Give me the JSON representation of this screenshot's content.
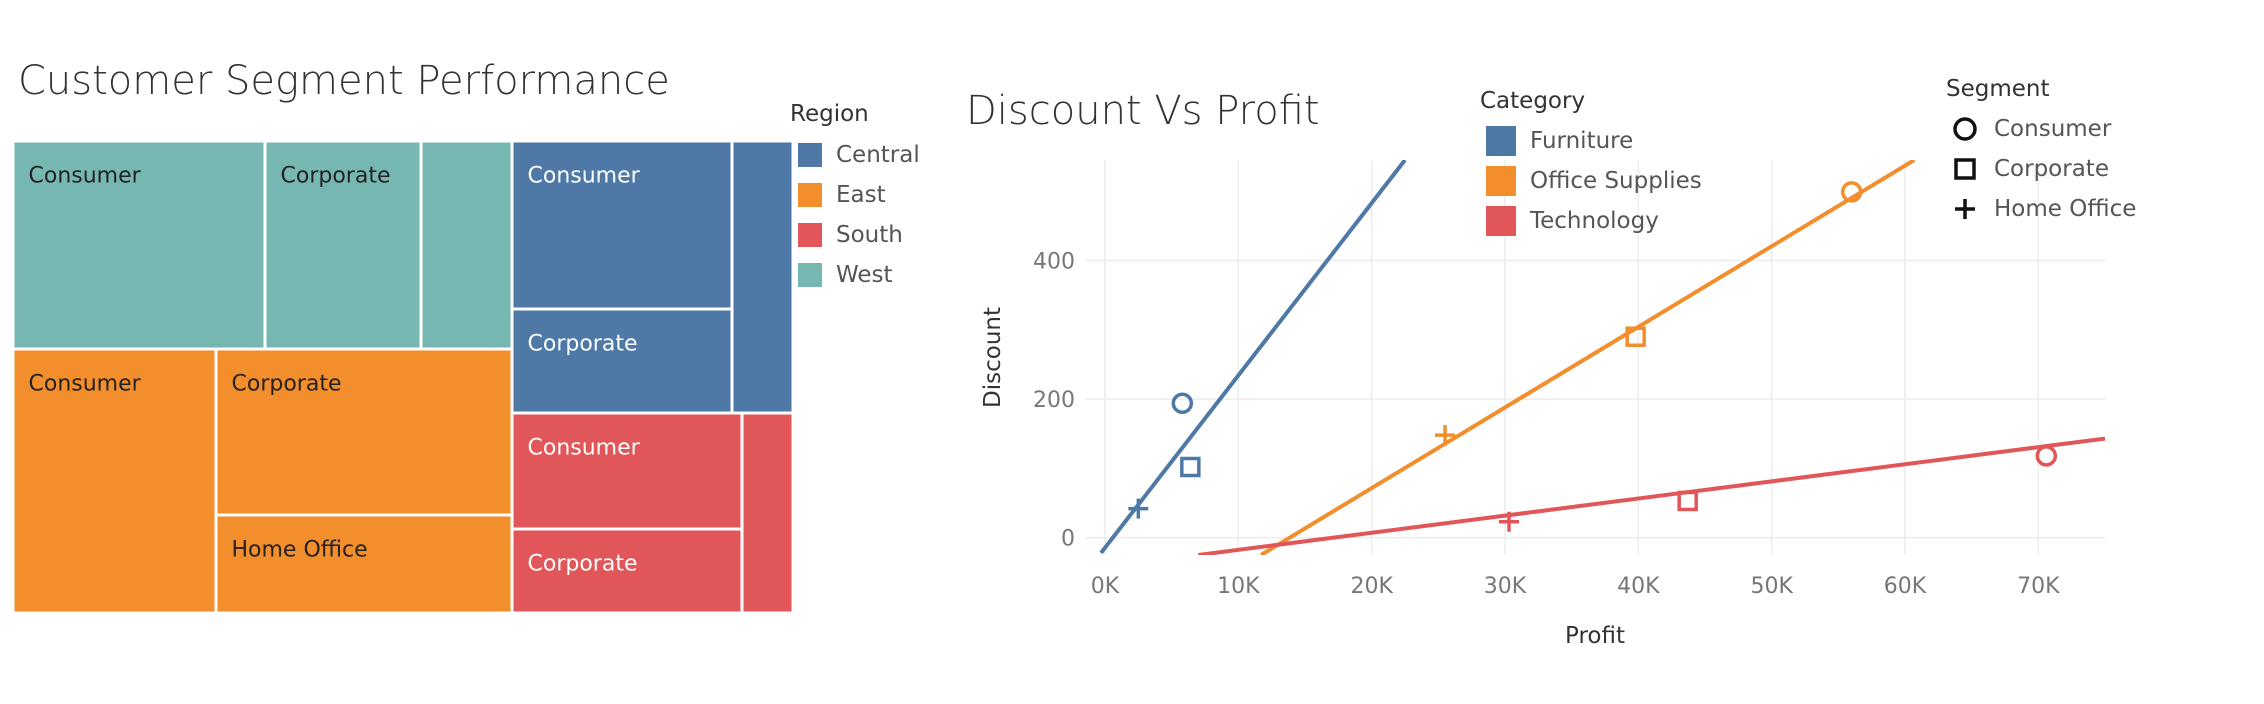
{
  "treemap": {
    "title": "Customer Segment Performance",
    "legend_title": "Region",
    "regions": [
      {
        "name": "Central",
        "color": "#4e79a7"
      },
      {
        "name": "East",
        "color": "#f28e2b"
      },
      {
        "name": "South",
        "color": "#e15759"
      },
      {
        "name": "West",
        "color": "#76b7b2"
      }
    ]
  },
  "scatter": {
    "title": "Discount Vs Profit",
    "category_legend_title": "Category",
    "categories": [
      {
        "name": "Furniture",
        "color": "#4e79a7"
      },
      {
        "name": "Office Supplies",
        "color": "#f28e2b"
      },
      {
        "name": "Technology",
        "color": "#e15759"
      }
    ],
    "segment_legend_title": "Segment",
    "segments": [
      {
        "name": "Consumer",
        "icon": "circle-icon"
      },
      {
        "name": "Corporate",
        "icon": "square-icon"
      },
      {
        "name": "Home Office",
        "icon": "plus-icon"
      }
    ]
  },
  "chart_data": [
    {
      "type": "treemap",
      "title": "Customer Segment Performance",
      "legend": "Region",
      "groups": [
        {
          "region": "West",
          "color": "#76b7b2",
          "cells": [
            {
              "label": "Consumer",
              "value": 242
            },
            {
              "label": "Corporate",
              "value": 150
            },
            {
              "label": "",
              "value": 87
            }
          ]
        },
        {
          "region": "East",
          "color": "#f28e2b",
          "cells": [
            {
              "label": "Consumer",
              "value": 247
            },
            {
              "label": "Corporate",
              "value": 227
            },
            {
              "label": "Home Office",
              "value": 133
            }
          ]
        },
        {
          "region": "Central",
          "color": "#4e79a7",
          "cells": [
            {
              "label": "Consumer",
              "value": 170
            },
            {
              "label": "Corporate",
              "value": 106
            },
            {
              "label": "",
              "value": 77
            }
          ]
        },
        {
          "region": "South",
          "color": "#e15759",
          "cells": [
            {
              "label": "Consumer",
              "value": 124
            },
            {
              "label": "Corporate",
              "value": 89
            },
            {
              "label": "",
              "value": 47
            }
          ]
        }
      ]
    },
    {
      "type": "scatter",
      "title": "Discount Vs Profit",
      "xlabel": "Profit",
      "ylabel": "Discount",
      "xticks": [
        "0K",
        "10K",
        "20K",
        "30K",
        "40K",
        "50K",
        "60K",
        "70K"
      ],
      "yticks": [
        "0",
        "200",
        "400"
      ],
      "xlim": [
        -1500,
        75000
      ],
      "ylim": [
        -25,
        545
      ],
      "grid": true,
      "series": [
        {
          "name": "Furniture",
          "color": "#4e79a7",
          "points": [
            {
              "segment": "Consumer",
              "x": 5800,
              "y": 194
            },
            {
              "segment": "Corporate",
              "x": 6400,
              "y": 102
            },
            {
              "segment": "Home Office",
              "x": 2500,
              "y": 42
            }
          ],
          "trendline": [
            [
              -300,
              -22
            ],
            [
              22500,
              545
            ]
          ]
        },
        {
          "name": "Office Supplies",
          "color": "#f28e2b",
          "points": [
            {
              "segment": "Consumer",
              "x": 56000,
              "y": 499
            },
            {
              "segment": "Corporate",
              "x": 39800,
              "y": 290
            },
            {
              "segment": "Home Office",
              "x": 25500,
              "y": 148
            }
          ],
          "trendline": [
            [
              11700,
              -25
            ],
            [
              60700,
              545
            ]
          ]
        },
        {
          "name": "Technology",
          "color": "#e15759",
          "points": [
            {
              "segment": "Consumer",
              "x": 70600,
              "y": 118
            },
            {
              "segment": "Corporate",
              "x": 43700,
              "y": 53
            },
            {
              "segment": "Home Office",
              "x": 30300,
              "y": 23
            }
          ],
          "trendline": [
            [
              7000,
              -25
            ],
            [
              75000,
              143
            ]
          ]
        }
      ]
    }
  ]
}
